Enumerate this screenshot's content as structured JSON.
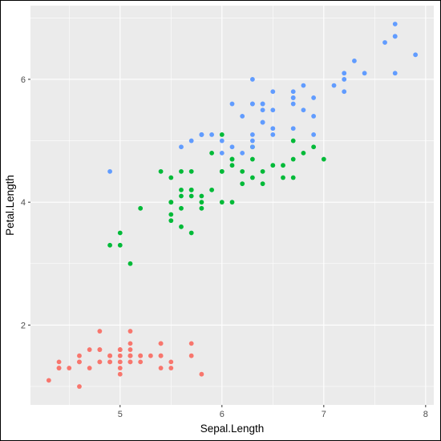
{
  "chart_data": {
    "type": "scatter",
    "title": "",
    "xlabel": "Sepal.Length",
    "ylabel": "Petal.Length",
    "xlim": [
      4.12,
      8.08
    ],
    "ylim": [
      0.7,
      7.2
    ],
    "x_ticks": [
      "5",
      "6",
      "7",
      "8"
    ],
    "y_ticks": [
      "2",
      "4",
      "6"
    ],
    "grid": true,
    "legend": "none",
    "background_color": "#EBEBEB",
    "series": [
      {
        "color": "#F8766D",
        "points": [
          [
            5.1,
            1.4
          ],
          [
            4.9,
            1.4
          ],
          [
            4.7,
            1.3
          ],
          [
            4.6,
            1.5
          ],
          [
            5.0,
            1.4
          ],
          [
            5.4,
            1.7
          ],
          [
            4.6,
            1.4
          ],
          [
            5.0,
            1.5
          ],
          [
            4.4,
            1.4
          ],
          [
            4.9,
            1.5
          ],
          [
            5.4,
            1.5
          ],
          [
            4.8,
            1.6
          ],
          [
            4.8,
            1.4
          ],
          [
            4.3,
            1.1
          ],
          [
            5.8,
            1.2
          ],
          [
            5.7,
            1.5
          ],
          [
            5.4,
            1.3
          ],
          [
            5.1,
            1.4
          ],
          [
            5.7,
            1.7
          ],
          [
            5.1,
            1.5
          ],
          [
            5.4,
            1.7
          ],
          [
            5.1,
            1.5
          ],
          [
            4.6,
            1.0
          ],
          [
            5.1,
            1.7
          ],
          [
            4.8,
            1.9
          ],
          [
            5.0,
            1.6
          ],
          [
            5.0,
            1.6
          ],
          [
            5.2,
            1.5
          ],
          [
            5.2,
            1.4
          ],
          [
            4.7,
            1.6
          ],
          [
            4.8,
            1.6
          ],
          [
            5.4,
            1.5
          ],
          [
            5.2,
            1.5
          ],
          [
            5.5,
            1.4
          ],
          [
            4.9,
            1.5
          ],
          [
            5.0,
            1.2
          ],
          [
            5.5,
            1.3
          ],
          [
            4.9,
            1.4
          ],
          [
            4.4,
            1.3
          ],
          [
            5.1,
            1.5
          ],
          [
            5.0,
            1.3
          ],
          [
            4.5,
            1.3
          ],
          [
            4.4,
            1.3
          ],
          [
            5.0,
            1.6
          ],
          [
            5.1,
            1.9
          ],
          [
            4.8,
            1.4
          ],
          [
            5.1,
            1.6
          ],
          [
            4.6,
            1.4
          ],
          [
            5.3,
            1.5
          ],
          [
            5.0,
            1.4
          ]
        ]
      },
      {
        "color": "#00BA38",
        "points": [
          [
            7.0,
            4.7
          ],
          [
            6.4,
            4.5
          ],
          [
            6.9,
            4.9
          ],
          [
            5.5,
            4.0
          ],
          [
            6.5,
            4.6
          ],
          [
            5.7,
            4.5
          ],
          [
            6.3,
            4.7
          ],
          [
            4.9,
            3.3
          ],
          [
            6.6,
            4.6
          ],
          [
            5.2,
            3.9
          ],
          [
            5.0,
            3.5
          ],
          [
            5.9,
            4.2
          ],
          [
            6.0,
            4.0
          ],
          [
            6.1,
            4.7
          ],
          [
            5.6,
            3.6
          ],
          [
            6.7,
            4.4
          ],
          [
            5.6,
            4.5
          ],
          [
            5.8,
            4.1
          ],
          [
            6.2,
            4.5
          ],
          [
            5.6,
            3.9
          ],
          [
            5.9,
            4.8
          ],
          [
            6.1,
            4.0
          ],
          [
            6.3,
            4.9
          ],
          [
            6.1,
            4.7
          ],
          [
            6.4,
            4.3
          ],
          [
            6.6,
            4.4
          ],
          [
            6.8,
            4.8
          ],
          [
            6.7,
            5.0
          ],
          [
            6.0,
            4.5
          ],
          [
            5.7,
            3.5
          ],
          [
            5.5,
            3.8
          ],
          [
            5.5,
            3.7
          ],
          [
            5.8,
            3.9
          ],
          [
            6.0,
            5.1
          ],
          [
            5.4,
            4.5
          ],
          [
            6.0,
            4.5
          ],
          [
            6.7,
            4.7
          ],
          [
            6.3,
            4.4
          ],
          [
            5.6,
            4.1
          ],
          [
            5.5,
            4.0
          ],
          [
            5.5,
            4.4
          ],
          [
            6.1,
            4.6
          ],
          [
            5.8,
            4.0
          ],
          [
            5.0,
            3.3
          ],
          [
            5.6,
            4.2
          ],
          [
            5.7,
            4.2
          ],
          [
            5.7,
            4.2
          ],
          [
            6.2,
            4.3
          ],
          [
            5.1,
            3.0
          ],
          [
            5.7,
            4.1
          ]
        ]
      },
      {
        "color": "#619CFF",
        "points": [
          [
            6.3,
            6.0
          ],
          [
            5.8,
            5.1
          ],
          [
            7.1,
            5.9
          ],
          [
            6.3,
            5.6
          ],
          [
            6.5,
            5.8
          ],
          [
            7.6,
            6.6
          ],
          [
            4.9,
            4.5
          ],
          [
            7.3,
            6.3
          ],
          [
            6.7,
            5.8
          ],
          [
            7.2,
            6.1
          ],
          [
            6.5,
            5.1
          ],
          [
            6.4,
            5.3
          ],
          [
            6.8,
            5.5
          ],
          [
            5.7,
            5.0
          ],
          [
            5.8,
            5.1
          ],
          [
            6.4,
            5.3
          ],
          [
            6.5,
            5.5
          ],
          [
            7.7,
            6.7
          ],
          [
            7.7,
            6.9
          ],
          [
            6.0,
            5.0
          ],
          [
            6.9,
            5.7
          ],
          [
            5.6,
            4.9
          ],
          [
            7.7,
            6.7
          ],
          [
            6.3,
            4.9
          ],
          [
            6.7,
            5.7
          ],
          [
            7.2,
            6.0
          ],
          [
            6.2,
            4.8
          ],
          [
            6.1,
            4.9
          ],
          [
            6.4,
            5.6
          ],
          [
            7.2,
            5.8
          ],
          [
            7.4,
            6.1
          ],
          [
            7.9,
            6.4
          ],
          [
            6.4,
            5.6
          ],
          [
            6.3,
            5.1
          ],
          [
            6.1,
            5.6
          ],
          [
            7.7,
            6.1
          ],
          [
            6.3,
            5.6
          ],
          [
            6.4,
            5.5
          ],
          [
            6.0,
            4.8
          ],
          [
            6.9,
            5.4
          ],
          [
            6.7,
            5.6
          ],
          [
            6.9,
            5.1
          ],
          [
            5.8,
            5.1
          ],
          [
            6.8,
            5.9
          ],
          [
            6.7,
            5.7
          ],
          [
            6.7,
            5.2
          ],
          [
            6.3,
            5.0
          ],
          [
            6.5,
            5.2
          ],
          [
            6.2,
            5.4
          ],
          [
            5.9,
            5.1
          ]
        ]
      }
    ]
  }
}
